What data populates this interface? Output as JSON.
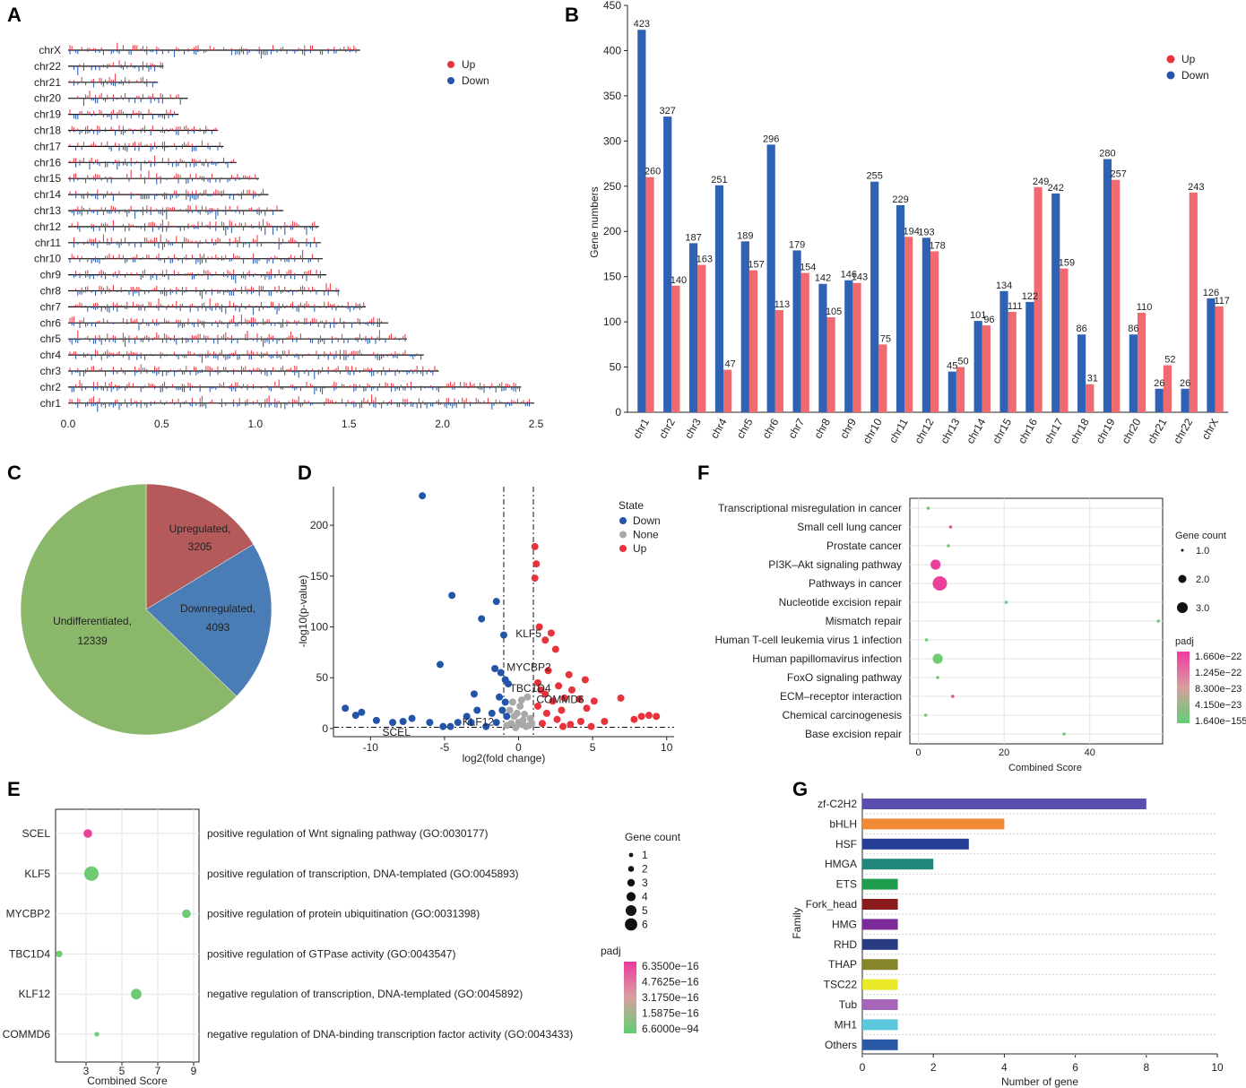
{
  "panel_labels": [
    "A",
    "B",
    "C",
    "D",
    "E",
    "F",
    "G"
  ],
  "colors": {
    "up": "#e8323c",
    "down": "#2255a8",
    "none": "#a9a9a9",
    "up_bar": "#f06a6f",
    "down_bar": "#2f62b4",
    "pie_up": "#b45a5a",
    "pie_down": "#4a7db5",
    "pie_und": "#8ab76a"
  },
  "chart_data": [
    {
      "id": "A",
      "type": "line",
      "title": "",
      "legend": [
        {
          "name": "Up"
        },
        {
          "name": "Down"
        }
      ],
      "chromosomes": [
        "chrX",
        "chr22",
        "chr21",
        "chr20",
        "chr19",
        "chr18",
        "chr17",
        "chr16",
        "chr15",
        "chr14",
        "chr13",
        "chr12",
        "chr11",
        "chr10",
        "chr9",
        "chr8",
        "chr7",
        "chr6",
        "chr5",
        "chr4",
        "chr3",
        "chr2",
        "chr1"
      ],
      "lengths": [
        1.56,
        0.51,
        0.48,
        0.64,
        0.59,
        0.8,
        0.83,
        0.9,
        1.02,
        1.07,
        1.15,
        1.34,
        1.35,
        1.36,
        1.38,
        1.45,
        1.59,
        1.71,
        1.81,
        1.9,
        1.98,
        2.42,
        2.49
      ],
      "xticks": [
        "0.0",
        "0.5",
        "1.0",
        "1.5",
        "2.0",
        "2.5"
      ],
      "xlim": [
        0,
        2.5
      ]
    },
    {
      "id": "B",
      "type": "bar",
      "ylabel": "Gene numbers",
      "ylim": [
        0,
        450
      ],
      "yticks": [
        "0",
        "50",
        "100",
        "150",
        "200",
        "250",
        "300",
        "350",
        "400",
        "450"
      ],
      "categories": [
        "chr1",
        "chr2",
        "chr3",
        "chr4",
        "chr5",
        "chr6",
        "chr7",
        "chr8",
        "chr9",
        "chr10",
        "chr11",
        "chr12",
        "chr13",
        "chr14",
        "chr15",
        "chr16",
        "chr17",
        "chr18",
        "chr19",
        "chr20",
        "chr21",
        "chr22",
        "chrX"
      ],
      "series": [
        {
          "name": "Down",
          "values": [
            423,
            327,
            187,
            251,
            189,
            296,
            179,
            142,
            146,
            255,
            229,
            193,
            45,
            101,
            134,
            122,
            242,
            86,
            280,
            86,
            26,
            26,
            126
          ]
        },
        {
          "name": "Up",
          "values": [
            260,
            140,
            163,
            47,
            157,
            113,
            154,
            105,
            143,
            75,
            194,
            178,
            50,
            96,
            111,
            249,
            159,
            31,
            257,
            110,
            52,
            243,
            117
          ]
        }
      ],
      "legend": [
        {
          "name": "Up"
        },
        {
          "name": "Down"
        }
      ]
    },
    {
      "id": "C",
      "type": "pie",
      "slices": [
        {
          "label": "Upregulated,",
          "value": 3205,
          "value_text": "3205"
        },
        {
          "label": "Downregulated,",
          "value": 4093,
          "value_text": "4093"
        },
        {
          "label": "Undifferentiated,",
          "value": 12339,
          "value_text": "12339"
        }
      ]
    },
    {
      "id": "D",
      "type": "scatter",
      "xlabel": "log2(fold change)",
      "ylabel": "-log10(p-value)",
      "xlim": [
        -12.5,
        10.5
      ],
      "ylim": [
        -8,
        238
      ],
      "xticks": [
        "-10",
        "-5",
        "0",
        "5",
        "10"
      ],
      "yticks": [
        "0",
        "50",
        "100",
        "150",
        "200"
      ],
      "legend_title": "State",
      "legend": [
        "Down",
        "None",
        "Up"
      ],
      "labels": [
        {
          "text": "KLF5",
          "x": -0.2,
          "y": 90
        },
        {
          "text": "MYCBP2",
          "x": -0.8,
          "y": 57
        },
        {
          "text": "TBC1D4",
          "x": -0.6,
          "y": 36
        },
        {
          "text": "COMMD6",
          "x": 1.2,
          "y": 25
        },
        {
          "text": "KLF12",
          "x": -3.8,
          "y": 3
        },
        {
          "text": "SCEL",
          "x": -9.2,
          "y": -7
        }
      ],
      "points_down": [
        [
          -6.5,
          229
        ],
        [
          -4.5,
          131
        ],
        [
          -1.5,
          125
        ],
        [
          -2.5,
          108
        ],
        [
          -5.3,
          63
        ],
        [
          -1.6,
          59
        ],
        [
          -1.2,
          55
        ],
        [
          -0.9,
          48
        ],
        [
          -0.7,
          44
        ],
        [
          -3.0,
          34
        ],
        [
          -1.0,
          92
        ],
        [
          -2.8,
          18
        ],
        [
          -3.5,
          12
        ],
        [
          -4.1,
          6
        ],
        [
          -5.1,
          2
        ],
        [
          -6.0,
          6
        ],
        [
          -7.2,
          10
        ],
        [
          -7.8,
          7
        ],
        [
          -8.5,
          6
        ],
        [
          -9.6,
          8
        ],
        [
          -10.6,
          16
        ],
        [
          -11.0,
          13
        ],
        [
          -11.7,
          20
        ],
        [
          -1.8,
          15
        ],
        [
          -1.5,
          6
        ],
        [
          -2.2,
          2
        ],
        [
          -0.9,
          26
        ],
        [
          -1.3,
          31
        ],
        [
          -1.1,
          18
        ],
        [
          -0.8,
          12
        ],
        [
          -4.6,
          2
        ],
        [
          -3.2,
          6
        ]
      ],
      "points_none": [
        [
          -0.3,
          12
        ],
        [
          0.1,
          22
        ],
        [
          0.3,
          8
        ],
        [
          -0.5,
          5
        ],
        [
          0.6,
          31
        ],
        [
          -0.8,
          3
        ],
        [
          0.2,
          4
        ],
        [
          -0.2,
          1
        ],
        [
          0.5,
          2
        ],
        [
          0.0,
          6
        ],
        [
          -0.6,
          18
        ],
        [
          0.4,
          14
        ],
        [
          0.8,
          10
        ],
        [
          -0.4,
          26
        ],
        [
          0.7,
          3
        ],
        [
          -0.1,
          15
        ],
        [
          0.2,
          28
        ],
        [
          0.9,
          5
        ]
      ],
      "points_up": [
        [
          1.1,
          179
        ],
        [
          1.2,
          162
        ],
        [
          1.1,
          148
        ],
        [
          1.4,
          100
        ],
        [
          2.2,
          94
        ],
        [
          2.5,
          78
        ],
        [
          1.8,
          87
        ],
        [
          2.0,
          57
        ],
        [
          4.5,
          48
        ],
        [
          3.4,
          53
        ],
        [
          2.7,
          42
        ],
        [
          1.3,
          45
        ],
        [
          3.6,
          38
        ],
        [
          3.1,
          30
        ],
        [
          4.1,
          29
        ],
        [
          2.3,
          27
        ],
        [
          5.1,
          27
        ],
        [
          6.9,
          30
        ],
        [
          8.8,
          13
        ],
        [
          9.3,
          12
        ],
        [
          7.8,
          9
        ],
        [
          8.3,
          12
        ],
        [
          4.9,
          2
        ],
        [
          4.2,
          7
        ],
        [
          3.5,
          4
        ],
        [
          2.6,
          9
        ],
        [
          1.9,
          15
        ],
        [
          1.6,
          5
        ],
        [
          1.3,
          22
        ],
        [
          1.8,
          34
        ],
        [
          2.9,
          18
        ],
        [
          4.6,
          20
        ],
        [
          5.8,
          7
        ],
        [
          1.5,
          38
        ],
        [
          3.0,
          2
        ]
      ]
    },
    {
      "id": "E",
      "type": "scatter",
      "xlabel": "Combined Score",
      "xticks": [
        "3",
        "5",
        "7",
        "9"
      ],
      "xlim": [
        1.3,
        9.3
      ],
      "genes": [
        "SCEL",
        "KLF5",
        "MYCBP2",
        "TBC1D4",
        "KLF12",
        "COMMD6"
      ],
      "terms": [
        "positive regulation of Wnt signaling pathway (GO:0030177)",
        "positive regulation of transcription, DNA-templated (GO:0045893)",
        "positive regulation of protein ubiquitination (GO:0031398)",
        "positive regulation of GTPase activity (GO:0043547)",
        "negative regulation of transcription, DNA-templated (GO:0045892)",
        "negative regulation of DNA-binding transcription factor activity (GO:0043433)"
      ],
      "scores": [
        3.1,
        3.3,
        8.6,
        1.5,
        5.8,
        3.6
      ],
      "gene_counts": [
        3,
        6,
        3,
        2,
        4,
        1
      ],
      "padj_color": [
        "#ea3f9a",
        "#6ecb73",
        "#6ecb73",
        "#6ecb73",
        "#6ecb73",
        "#6ecb73"
      ],
      "size_legend_title": "Gene count",
      "size_legend": [
        "1",
        "2",
        "3",
        "4",
        "5",
        "6"
      ],
      "color_legend_title": "padj",
      "color_legend": [
        "6.3500e−16",
        "4.7625e−16",
        "3.1750e−16",
        "1.5875e−16",
        "6.6000e−94"
      ]
    },
    {
      "id": "F",
      "type": "scatter",
      "xlabel": "Combined Score",
      "xticks": [
        "0",
        "20",
        "40"
      ],
      "xlim": [
        -2,
        57
      ],
      "pathways": [
        "Transcriptional misregulation in cancer",
        "Small cell lung cancer",
        "Prostate cancer",
        "PI3K–Akt signaling pathway",
        "Pathways in cancer",
        "Nucleotide excision repair",
        "Mismatch repair",
        "Human T-cell leukemia virus 1 infection",
        "Human papillomavirus infection",
        "FoxO signaling pathway",
        "ECM–receptor interaction",
        "Chemical carcinogenesis",
        "Base excision repair"
      ],
      "scores": [
        2.3,
        7.5,
        7.0,
        4.0,
        5.0,
        20.5,
        56.0,
        1.9,
        4.5,
        4.5,
        8.0,
        1.7,
        34.0
      ],
      "gene_counts": [
        1,
        1,
        1,
        2,
        3,
        1,
        1,
        1,
        2,
        1,
        1,
        1,
        1
      ],
      "padj_color": [
        "#6ecb73",
        "#e8508f",
        "#6ecb73",
        "#ea3f9a",
        "#ea3f9a",
        "#6ecb73",
        "#6ecb73",
        "#6ecb73",
        "#6ecb73",
        "#6ecb73",
        "#e8508f",
        "#6ecb73",
        "#6ecb73"
      ],
      "size_legend_title": "Gene count",
      "size_legend": [
        "1.0",
        "2.0",
        "3.0"
      ],
      "color_legend_title": "padj",
      "color_legend": [
        "1.660e−22",
        "1.245e−22",
        "8.300e−23",
        "4.150e−23",
        "1.640e−155"
      ]
    },
    {
      "id": "G",
      "type": "bar",
      "orientation": "horizontal",
      "xlabel": "Number of gene",
      "ylabel": "Family",
      "xlim": [
        0,
        10
      ],
      "xticks": [
        "0",
        "2",
        "4",
        "6",
        "8",
        "10"
      ],
      "categories": [
        "zf-C2H2",
        "bHLH",
        "HSF",
        "HMGA",
        "ETS",
        "Fork_head",
        "HMG",
        "RHD",
        "THAP",
        "TSC22",
        "Tub",
        "MH1",
        "Others"
      ],
      "values": [
        8,
        4,
        3,
        2,
        1,
        1,
        1,
        1,
        1,
        1,
        1,
        1,
        1
      ],
      "bar_colors": [
        "#5a4fb0",
        "#f08a34",
        "#263f96",
        "#23867a",
        "#1f9c4e",
        "#8b1a1a",
        "#7b2a9a",
        "#283b82",
        "#86852a",
        "#eaea2b",
        "#a565b8",
        "#5cc8dc",
        "#2a59a8"
      ]
    }
  ]
}
